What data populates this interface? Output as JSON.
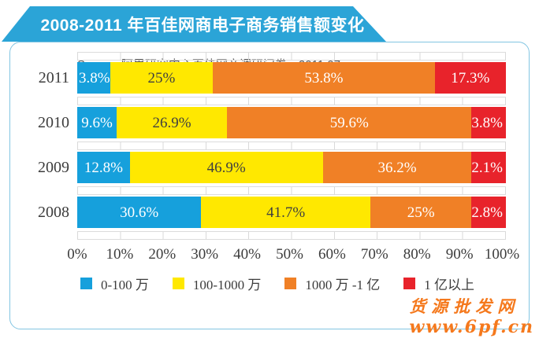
{
  "title": "2008-2011 年百佳网商电子商务销售额变化",
  "chart_data": {
    "type": "bar",
    "stacked": true,
    "orientation": "horizontal",
    "unit": "%",
    "categories": [
      "2011",
      "2010",
      "2009",
      "2008"
    ],
    "series": [
      {
        "name": "0-100 万",
        "color": "#16A0DC",
        "label_color": "#FFFFFF",
        "values": [
          3.8,
          9.6,
          12.8,
          30.6
        ]
      },
      {
        "name": "100-1000 万",
        "color": "#FFE800",
        "label_color": "#404040",
        "values": [
          25,
          26.9,
          46.9,
          41.7
        ]
      },
      {
        "name": "1000 万 -1 亿",
        "color": "#F08026",
        "label_color": "#FFFFFF",
        "values": [
          53.8,
          59.6,
          36.2,
          25
        ]
      },
      {
        "name": "1 亿以上",
        "color": "#E8232B",
        "label_color": "#FFFFFF",
        "values": [
          17.3,
          3.8,
          2.1,
          2.8
        ]
      }
    ],
    "data_labels": [
      [
        "3.8%",
        "25%",
        "53.8%",
        "17.3%"
      ],
      [
        "9.6%",
        "26.9%",
        "59.6%",
        "3.8%"
      ],
      [
        "12.8%",
        "46.9%",
        "36.2%",
        "2.1%"
      ],
      [
        "30.6%",
        "41.7%",
        "25%",
        "2.8%"
      ]
    ],
    "xticks": [
      "0%",
      "10%",
      "20%",
      "30%",
      "40%",
      "50%",
      "60%",
      "70%",
      "80%",
      "90%",
      "100%"
    ],
    "xlim": [
      0,
      100
    ],
    "grid": true,
    "legend_position": "bottom"
  },
  "source": "Source: 阿里研究中心百佳网商调研问卷。2011.07。",
  "watermark": {
    "line1": "货源批发网",
    "line2": "www.6pf.cn"
  },
  "colors": {
    "banner": "#2BA4D7",
    "panel_border": "#82C5E2",
    "gridline": "#D9D9D9",
    "axis_text": "#3C3C3C",
    "watermark": "#F5791D"
  }
}
